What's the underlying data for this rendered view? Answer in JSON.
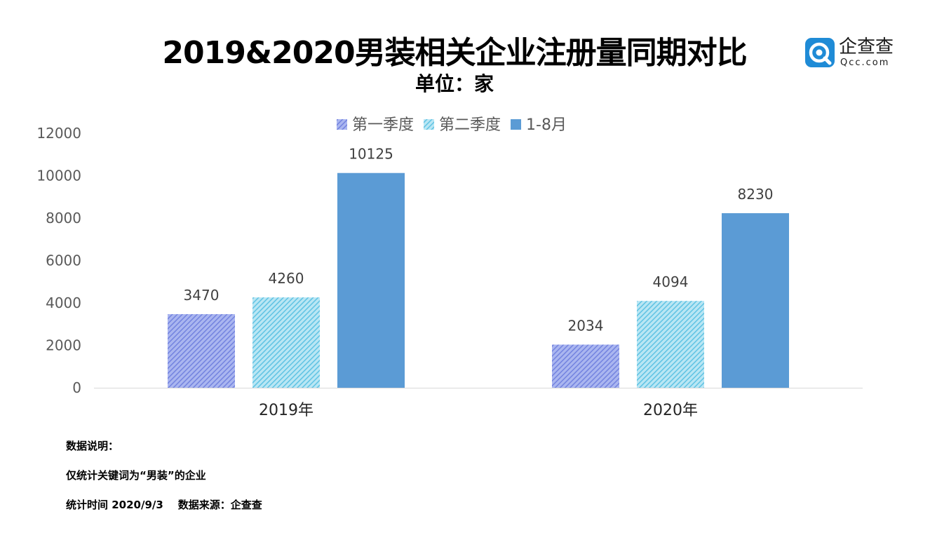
{
  "header": {
    "title": "2019&2020男装相关企业注册量同期对比",
    "subtitle": "单位：家"
  },
  "logo": {
    "name": "企查查",
    "domain": "Qcc.com",
    "brand_color": "#1f8bd6"
  },
  "chart_data": {
    "type": "bar",
    "categories": [
      "2019年",
      "2020年"
    ],
    "series": [
      {
        "name": "第一季度",
        "values": [
          3470,
          2034
        ],
        "color": "#8b9ae8",
        "pattern": "hatched"
      },
      {
        "name": "第二季度",
        "values": [
          4260,
          4094
        ],
        "color": "#7fd0ea",
        "pattern": "hatched"
      },
      {
        "name": "1-8月",
        "values": [
          10125,
          8230
        ],
        "color": "#5b9bd5",
        "pattern": "solid"
      }
    ],
    "yticks": [
      "0",
      "2000",
      "4000",
      "6000",
      "8000",
      "10000",
      "12000"
    ],
    "ylim": [
      0,
      12000
    ],
    "grid": false,
    "legend": "top-center",
    "data_labels": true
  },
  "notes": {
    "heading": "数据说明：",
    "scope": "仅统计关键词为“男装”的企业",
    "source": "统计时间 2020/9/3    数据来源：企查查"
  }
}
